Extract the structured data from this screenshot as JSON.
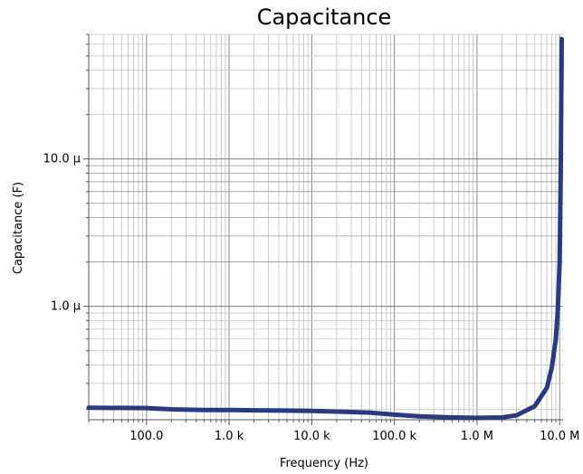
{
  "chart_data": {
    "type": "line",
    "title": "Capacitance",
    "xlabel": "Frequency (Hz)",
    "ylabel": "Capacitance (F)",
    "x_scale": "log",
    "y_scale": "log",
    "xlim": [
      20,
      11000000
    ],
    "ylim": [
      0.17,
      70
    ],
    "grid": true,
    "x_ticks": [
      {
        "value": 100,
        "label": "100.0"
      },
      {
        "value": 1000,
        "label": "1.0 k"
      },
      {
        "value": 10000,
        "label": "10.0 k"
      },
      {
        "value": 100000,
        "label": "100.0 k"
      },
      {
        "value": 1000000,
        "label": "1.0 M"
      },
      {
        "value": 10000000,
        "label": "10.0 M"
      }
    ],
    "y_ticks": [
      {
        "value": 1,
        "label": "1.0 µ"
      },
      {
        "value": 10,
        "label": "10.0 µ"
      }
    ],
    "y_unit_note": "y values in µF",
    "series": [
      {
        "color": "#2b3a80",
        "x": [
          20,
          100,
          200,
          500,
          1000,
          2000,
          5000,
          10000,
          20000,
          50000,
          100000,
          200000,
          500000,
          1000000,
          2000000,
          3000000,
          5000000,
          7000000,
          8000000,
          9000000,
          9500000,
          10000000,
          10300000,
          10600000
        ],
        "y": [
          0.205,
          0.204,
          0.2,
          0.198,
          0.198,
          0.197,
          0.196,
          0.195,
          0.193,
          0.19,
          0.184,
          0.179,
          0.176,
          0.175,
          0.176,
          0.182,
          0.21,
          0.28,
          0.38,
          0.6,
          0.95,
          2.0,
          8.0,
          65.0
        ]
      }
    ]
  }
}
